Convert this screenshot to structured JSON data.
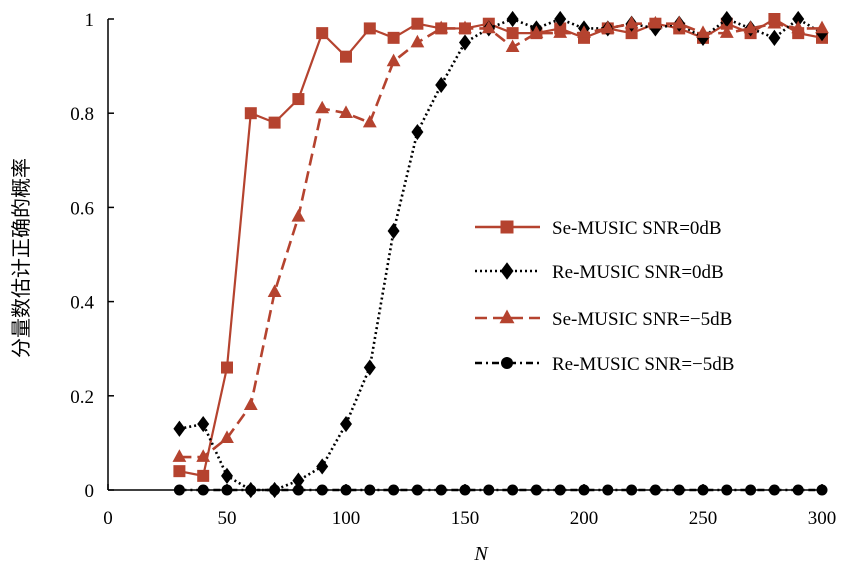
{
  "chart_data": {
    "type": "line",
    "xlabel": "N",
    "ylabel": "分量数估计正确的概率",
    "xlim": [
      0,
      300
    ],
    "ylim": [
      0,
      1
    ],
    "xticks": [
      0,
      50,
      100,
      150,
      200,
      250,
      300
    ],
    "yticks": [
      0,
      0.2,
      0.4,
      0.6,
      0.8,
      1
    ],
    "ytick_labels": [
      "0",
      "0.2",
      "0.4",
      "0.6",
      "0.8",
      "1"
    ],
    "grid": false,
    "legend_position": "right",
    "x": [
      30,
      40,
      50,
      60,
      70,
      80,
      90,
      100,
      110,
      120,
      130,
      140,
      150,
      160,
      170,
      180,
      190,
      200,
      210,
      220,
      230,
      240,
      250,
      260,
      270,
      280,
      290,
      300
    ],
    "series": [
      {
        "name": "Se-MUSIC SNR=0dB",
        "color": "#b5432f",
        "line_style": "solid",
        "marker": "square",
        "values": [
          0.04,
          0.03,
          0.26,
          0.8,
          0.78,
          0.83,
          0.97,
          0.92,
          0.98,
          0.96,
          0.99,
          0.98,
          0.98,
          0.99,
          0.97,
          0.97,
          0.98,
          0.96,
          0.98,
          0.97,
          0.99,
          0.98,
          0.96,
          0.99,
          0.97,
          1.0,
          0.97,
          0.96
        ]
      },
      {
        "name": "Re-MUSIC SNR=0dB",
        "color": "#000000",
        "line_style": "dotted",
        "marker": "diamond",
        "values": [
          0.13,
          0.14,
          0.03,
          0.0,
          0.0,
          0.02,
          0.05,
          0.14,
          0.26,
          0.55,
          0.76,
          0.86,
          0.95,
          0.98,
          1.0,
          0.98,
          1.0,
          0.98,
          0.98,
          0.99,
          0.98,
          0.99,
          0.96,
          1.0,
          0.98,
          0.96,
          1.0,
          0.97
        ]
      },
      {
        "name": "Se-MUSIC SNR=−5dB",
        "color": "#b5432f",
        "line_style": "dashed",
        "marker": "triangle",
        "values": [
          0.07,
          0.07,
          0.11,
          0.18,
          0.42,
          0.58,
          0.81,
          0.8,
          0.78,
          0.91,
          0.95,
          0.98,
          0.98,
          0.98,
          0.94,
          0.97,
          0.97,
          0.97,
          0.98,
          0.99,
          0.99,
          0.99,
          0.97,
          0.97,
          0.98,
          0.99,
          0.98,
          0.98
        ]
      },
      {
        "name": "Re-MUSIC SNR=−5dB",
        "color": "#000000",
        "line_style": "dash-dot",
        "marker": "circle",
        "values": [
          0,
          0,
          0,
          0,
          0,
          0,
          0,
          0,
          0,
          0,
          0,
          0,
          0,
          0,
          0,
          0,
          0,
          0,
          0,
          0,
          0,
          0,
          0,
          0,
          0,
          0,
          0,
          0
        ]
      }
    ]
  }
}
